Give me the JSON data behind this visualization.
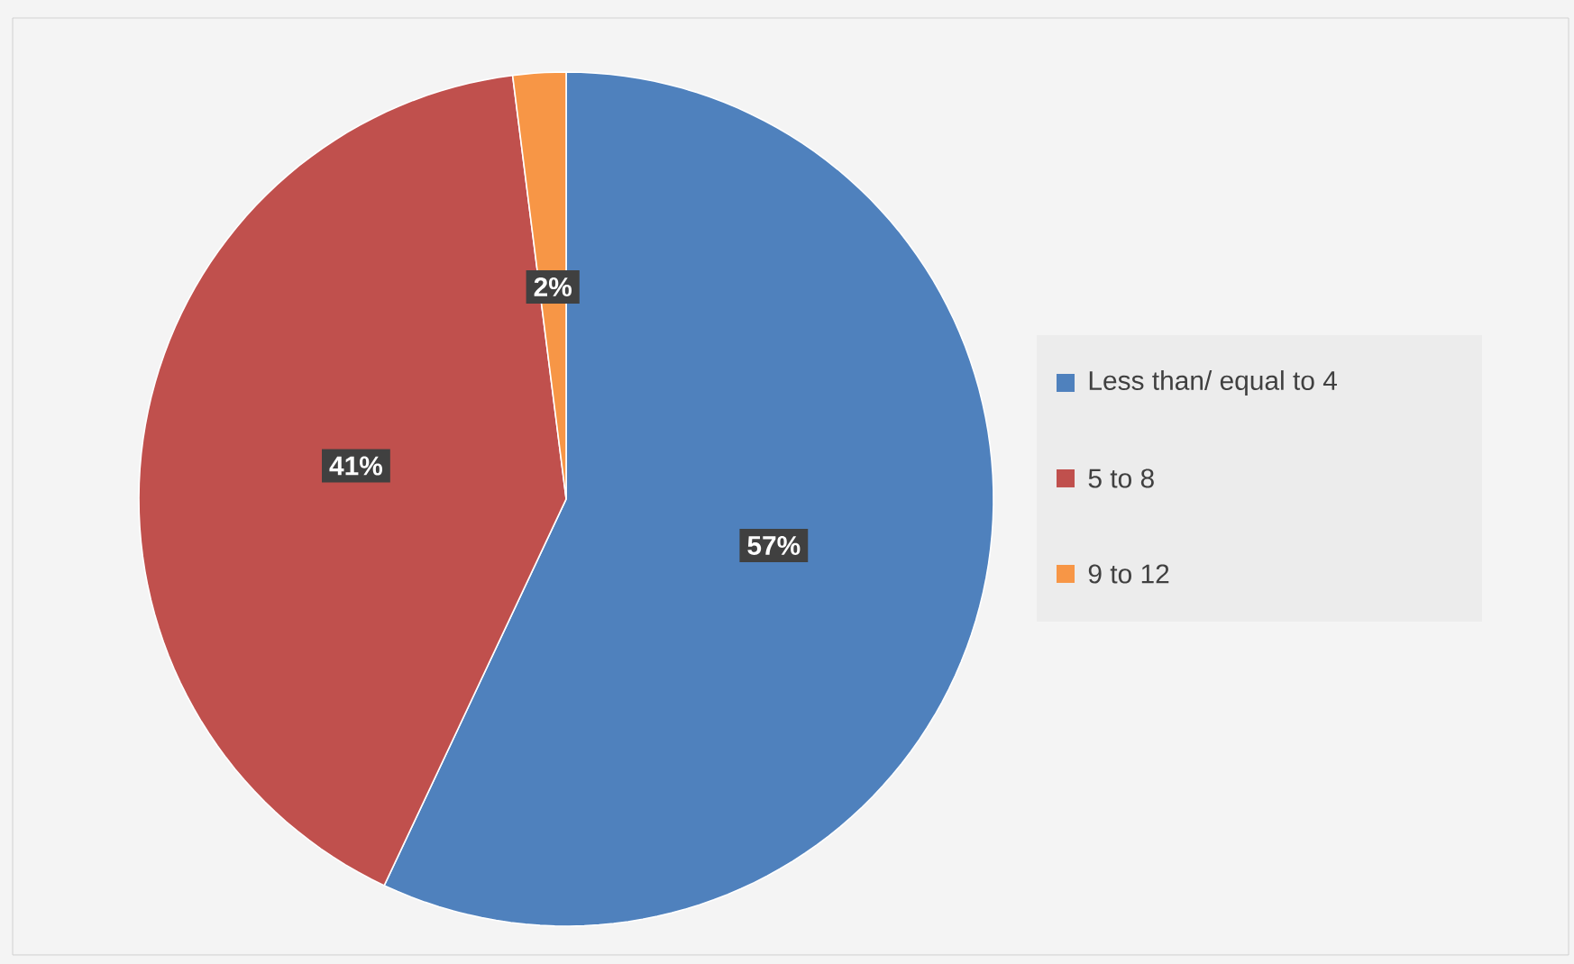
{
  "chart_data": {
    "type": "pie",
    "categories": [
      "Less than/ equal to 4",
      "5 to 8",
      "9 to 12"
    ],
    "values": [
      57,
      41,
      2
    ],
    "colors": [
      "#4f81bd",
      "#c0504d",
      "#f79646"
    ],
    "value_labels": [
      "57%",
      "41%",
      "2%"
    ],
    "legend": "right"
  }
}
